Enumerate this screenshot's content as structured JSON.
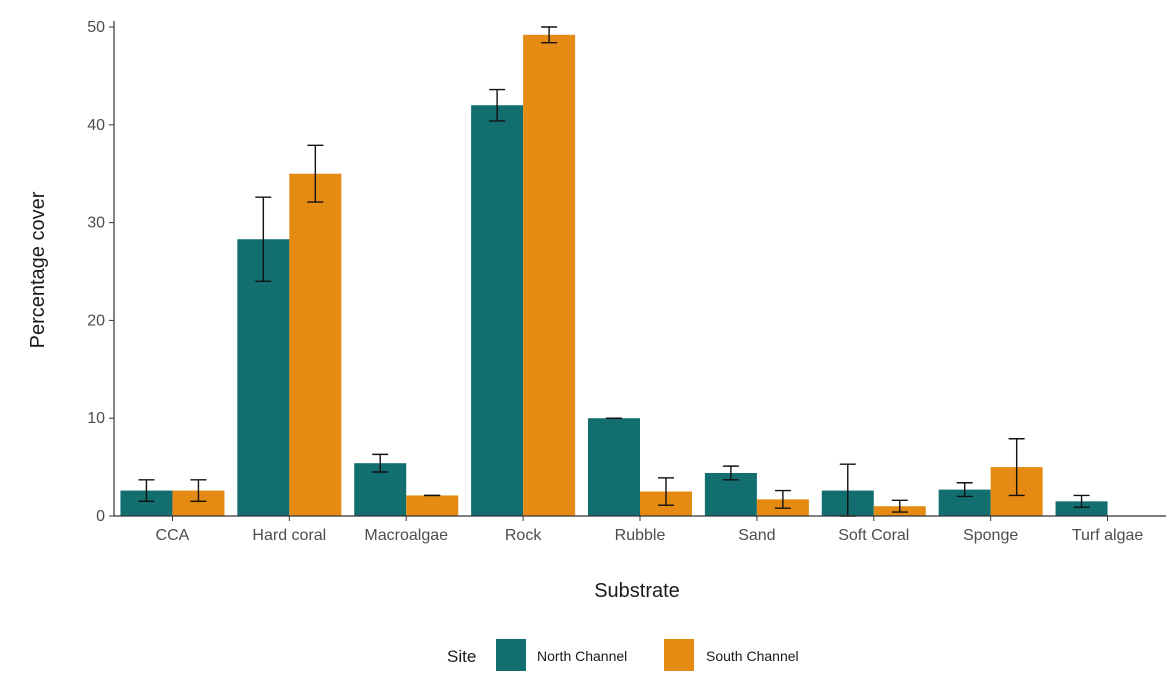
{
  "chart_data": {
    "type": "bar",
    "title": "",
    "xlabel": "Substrate",
    "ylabel": "Percentage cover",
    "ylim": [
      0,
      50
    ],
    "yticks": [
      "0",
      "10",
      "20",
      "30",
      "40",
      "50"
    ],
    "categories": [
      "CCA",
      "Hard coral",
      "Macroalgae",
      "Rock",
      "Rubble",
      "Sand",
      "Soft Coral",
      "Sponge",
      "Turf algae"
    ],
    "series": [
      {
        "name": "North Channel",
        "color": "#136f6f",
        "values": [
          2.6,
          28.3,
          5.4,
          42.0,
          10.0,
          4.4,
          2.6,
          2.7,
          1.5
        ],
        "errors": [
          1.1,
          4.3,
          0.9,
          1.6,
          0.0,
          0.7,
          2.7,
          0.7,
          0.6
        ]
      },
      {
        "name": "South Channel",
        "color": "#e58a13",
        "values": [
          2.6,
          35.0,
          2.1,
          49.2,
          2.5,
          1.7,
          1.0,
          5.0,
          0
        ],
        "errors": [
          1.1,
          2.9,
          0.0,
          0.8,
          1.4,
          0.9,
          0.6,
          2.9,
          0
        ]
      }
    ],
    "legend": {
      "title": "Site",
      "position": "bottom"
    },
    "grid": false
  }
}
